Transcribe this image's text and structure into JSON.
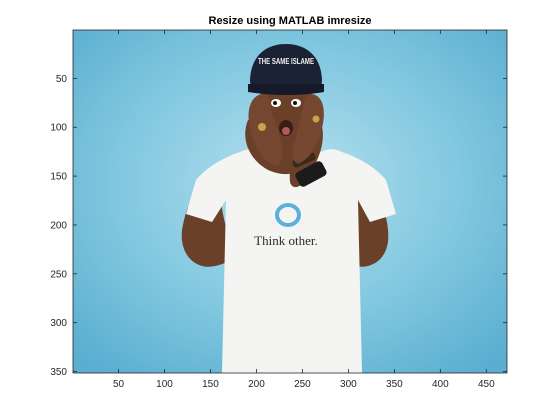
{
  "figure": {
    "title": "Resize using MATLAB imresize",
    "x_ticks": [
      "50",
      "100",
      "150",
      "200",
      "250",
      "300",
      "350",
      "400",
      "450"
    ],
    "x_tick_values": [
      50,
      100,
      150,
      200,
      250,
      300,
      350,
      400,
      450
    ],
    "y_ticks": [
      "50",
      "100",
      "150",
      "200",
      "250",
      "300",
      "350"
    ],
    "y_tick_values": [
      50,
      100,
      150,
      200,
      250,
      300,
      350
    ],
    "x_range": [
      0.5,
      472.5
    ],
    "y_range": [
      0.5,
      351.5
    ],
    "image": {
      "cap_text": "THE SAME ISLAME",
      "shirt_text": "Think other.",
      "background_color": "#6dbbd6",
      "shirt_color": "#f4f4f2",
      "skin_color": "#6b4028",
      "cap_color": "#1a2234",
      "logo_color": "#5bb0de"
    }
  }
}
